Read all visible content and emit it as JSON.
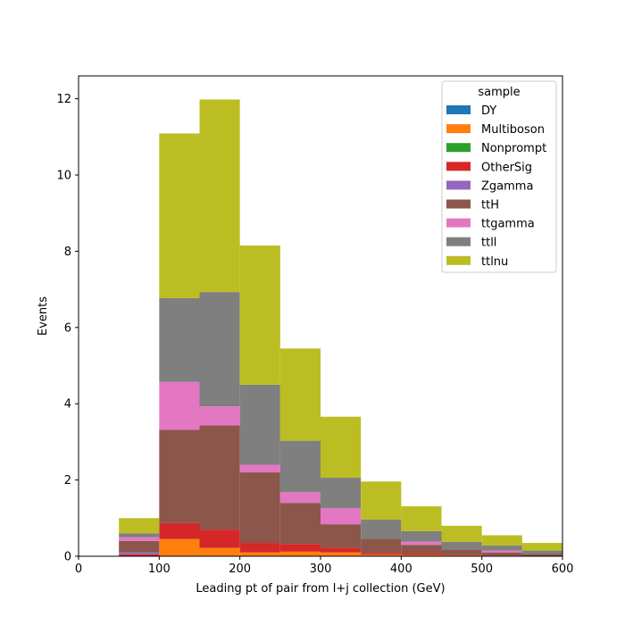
{
  "chart_data": {
    "type": "bar",
    "stacked": true,
    "histogram": true,
    "xlabel": "Leading pt of pair from l+j collection (GeV)",
    "ylabel": "Events",
    "xlim": [
      0,
      600
    ],
    "ylim": [
      0,
      12.6
    ],
    "xticks": [
      "0",
      "100",
      "200",
      "300",
      "400",
      "500",
      "600"
    ],
    "yticks": [
      "0",
      "2",
      "4",
      "6",
      "8",
      "10",
      "12"
    ],
    "grid": false,
    "legend": {
      "title": "sample",
      "placement": "top-right"
    },
    "bin_edges": [
      50,
      100,
      150,
      200,
      250,
      300,
      350,
      400,
      450,
      500,
      550,
      600
    ],
    "series": [
      {
        "name": "DY",
        "color": "#1f77b4",
        "values": [
          0,
          0,
          0,
          0,
          0,
          0,
          0,
          0,
          0,
          0,
          0
        ]
      },
      {
        "name": "Multiboson",
        "color": "#ff7f0e",
        "values": [
          0.0,
          0.45,
          0.22,
          0.1,
          0.12,
          0.1,
          0.04,
          0.03,
          0.02,
          0.0,
          0.0
        ]
      },
      {
        "name": "Nonprompt",
        "color": "#2ca02c",
        "values": [
          0,
          0,
          0,
          0,
          0,
          0,
          0,
          0,
          0,
          0,
          0
        ]
      },
      {
        "name": "OtherSig",
        "color": "#d62728",
        "values": [
          0.05,
          0.42,
          0.48,
          0.25,
          0.2,
          0.12,
          0.05,
          0.04,
          0.02,
          0.02,
          0.01
        ]
      },
      {
        "name": "Zgamma",
        "color": "#9467bd",
        "values": [
          0.05,
          0,
          0,
          0,
          0,
          0,
          0,
          0,
          0,
          0,
          0
        ]
      },
      {
        "name": "ttH",
        "color": "#8c564b",
        "values": [
          0.3,
          2.45,
          2.73,
          1.85,
          1.08,
          0.62,
          0.37,
          0.23,
          0.14,
          0.08,
          0.05
        ]
      },
      {
        "name": "ttgamma",
        "color": "#e377c2",
        "values": [
          0.1,
          1.25,
          0.5,
          0.2,
          0.28,
          0.42,
          0.0,
          0.08,
          0.0,
          0.05,
          0.0
        ]
      },
      {
        "name": "ttll",
        "color": "#7f7f7f",
        "values": [
          0.1,
          2.2,
          3.0,
          2.1,
          1.35,
          0.8,
          0.5,
          0.28,
          0.2,
          0.13,
          0.09
        ]
      },
      {
        "name": "ttlnu",
        "color": "#bcbd22",
        "values": [
          0.4,
          4.32,
          5.05,
          3.65,
          2.42,
          1.6,
          1.0,
          0.65,
          0.42,
          0.27,
          0.2
        ]
      }
    ]
  }
}
